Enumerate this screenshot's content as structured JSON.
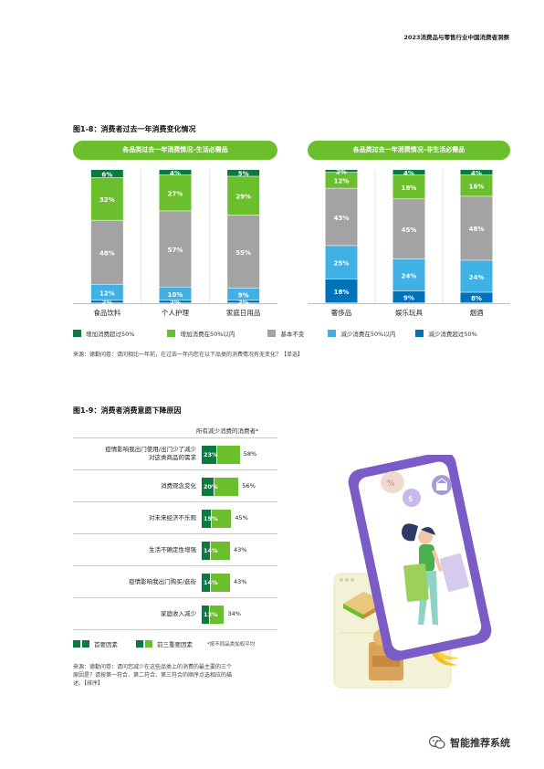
{
  "header": {
    "title": "2023消费品与零售行业中国消费者洞察"
  },
  "fig18": {
    "title": "图1-8：消费者过去一年消费变化情况",
    "left_pill": "各品类过去一年消费情况–生活必需品",
    "right_pill": "各品类过去一年消费情况–非生活必需品",
    "legend": [
      "增加消费超过50%",
      "增加消费在50%以内",
      "基本不变",
      "减少消费在50%以内",
      "减少消费超过50%"
    ],
    "source": "来源：德勤问卷：请问相比一年前，在过去一年内您在以下品类的消费情况有无变化？【单选】"
  },
  "chart_data": [
    {
      "type": "bar",
      "stacked": true,
      "title": "各品类过去一年消费情况–生活必需品",
      "categories": [
        "食品饮料",
        "个人护理",
        "家庭日用品"
      ],
      "series": [
        {
          "name": "减少消费超过50%",
          "values": [
            2,
            2,
            2
          ],
          "labels": [
            "2%",
            "2%",
            "2%"
          ],
          "color": "#0072b9"
        },
        {
          "name": "减少消费在50%以内",
          "values": [
            12,
            10,
            9
          ],
          "labels": [
            "12%",
            "10%",
            "9%"
          ],
          "color": "#3fb1e4"
        },
        {
          "name": "基本不变",
          "values": [
            48,
            57,
            55
          ],
          "labels": [
            "48%",
            "57%",
            "55%"
          ],
          "color": "#a3a3a3"
        },
        {
          "name": "增加消费在50%以内",
          "values": [
            32,
            27,
            29
          ],
          "labels": [
            "32%",
            "27%",
            "29%"
          ],
          "color": "#6cbf2c"
        },
        {
          "name": "增加消费超过50%",
          "values": [
            6,
            4,
            5
          ],
          "labels": [
            "6%",
            "4%",
            "5%"
          ],
          "color": "#0b7a3e"
        }
      ],
      "ylim": [
        0,
        100
      ]
    },
    {
      "type": "bar",
      "stacked": true,
      "title": "各品类过去一年消费情况–非生活必需品",
      "categories": [
        "奢侈品",
        "娱乐玩具",
        "烟酒"
      ],
      "series": [
        {
          "name": "减少消费超过50%",
          "values": [
            18,
            9,
            8
          ],
          "labels": [
            "18%",
            "9%",
            "8%"
          ],
          "color": "#0072b9"
        },
        {
          "name": "减少消费在50%以内",
          "values": [
            25,
            24,
            24
          ],
          "labels": [
            "25%",
            "24%",
            "24%"
          ],
          "color": "#3fb1e4"
        },
        {
          "name": "基本不变",
          "values": [
            43,
            45,
            48
          ],
          "labels": [
            "43%",
            "45%",
            "48%"
          ],
          "color": "#a3a3a3"
        },
        {
          "name": "增加消费在50%以内",
          "values": [
            12,
            18,
            16
          ],
          "labels": [
            "12%",
            "18%",
            "16%"
          ],
          "color": "#6cbf2c"
        },
        {
          "name": "增加消费超过50%",
          "values": [
            2,
            4,
            4
          ],
          "labels": [
            "2%",
            "4%",
            "4%"
          ],
          "color": "#0b7a3e"
        }
      ],
      "ylim": [
        0,
        100
      ]
    },
    {
      "type": "bar",
      "orientation": "horizontal",
      "title": "图1-9：消费者消费意愿下降原因",
      "subtitle": "所有减少消费的消费者*",
      "categories": [
        "疫情影响我出门使用/出门少了减少对这类商品的需求",
        "消费观念变化",
        "对未来经济不乐观",
        "生活不确定性增强",
        "疫情影响我出门购买/逛街",
        "家庭收入减少"
      ],
      "series": [
        {
          "name": "首要因素",
          "values": [
            23,
            20,
            15,
            14,
            14,
            13
          ],
          "labels": [
            "23%",
            "20%",
            "15%",
            "14%",
            "14%",
            "13%"
          ],
          "color": "#0b7a3e"
        },
        {
          "name": "前三重要因素",
          "values": [
            58,
            56,
            45,
            43,
            43,
            34
          ],
          "labels": [
            "58%",
            "56%",
            "45%",
            "43%",
            "43%",
            "34%"
          ],
          "color": "#6cbf2c"
        }
      ]
    }
  ],
  "fig19": {
    "title": "图1-9：消费者消费意愿下降原因",
    "subtitle": "所有减少消费的消费者*",
    "reasons": [
      {
        "line1": "疫情影响我出门使用/出门少了减少",
        "line2": "对这类商品的需求"
      },
      {
        "line1": "消费观念变化",
        "line2": ""
      },
      {
        "line1": "对未来经济不乐观",
        "line2": ""
      },
      {
        "line1": "生活不确定性增强",
        "line2": ""
      },
      {
        "line1": "疫情影响我出门购买/逛街",
        "line2": ""
      },
      {
        "line1": "家庭收入减少",
        "line2": ""
      }
    ],
    "legend": [
      "首要因素",
      "前三重要因素"
    ],
    "footnote": "*按不同品类加权平均",
    "source_lines": [
      "来源：德勤问卷：请问您减少在这些品类上的消费的最主要的三个",
      "原因是？请按第一符合、第二符合、第三符合的顺序点选相应的描",
      "述。【排序】"
    ]
  },
  "watermark": {
    "text": "智能推荐系统"
  },
  "colors": {
    "brand_green": "#6cbf2c",
    "dark_green": "#0b7a3e",
    "grey": "#a3a3a3",
    "light_blue": "#3fb1e4",
    "dark_blue": "#0072b9",
    "phone_purple": "#7b5cc6"
  },
  "icons": [
    "wechat-icon",
    "discount-tag-icon",
    "dollar-bubble-icon",
    "shopping-basket-icon",
    "shopping-cart-icon"
  ]
}
